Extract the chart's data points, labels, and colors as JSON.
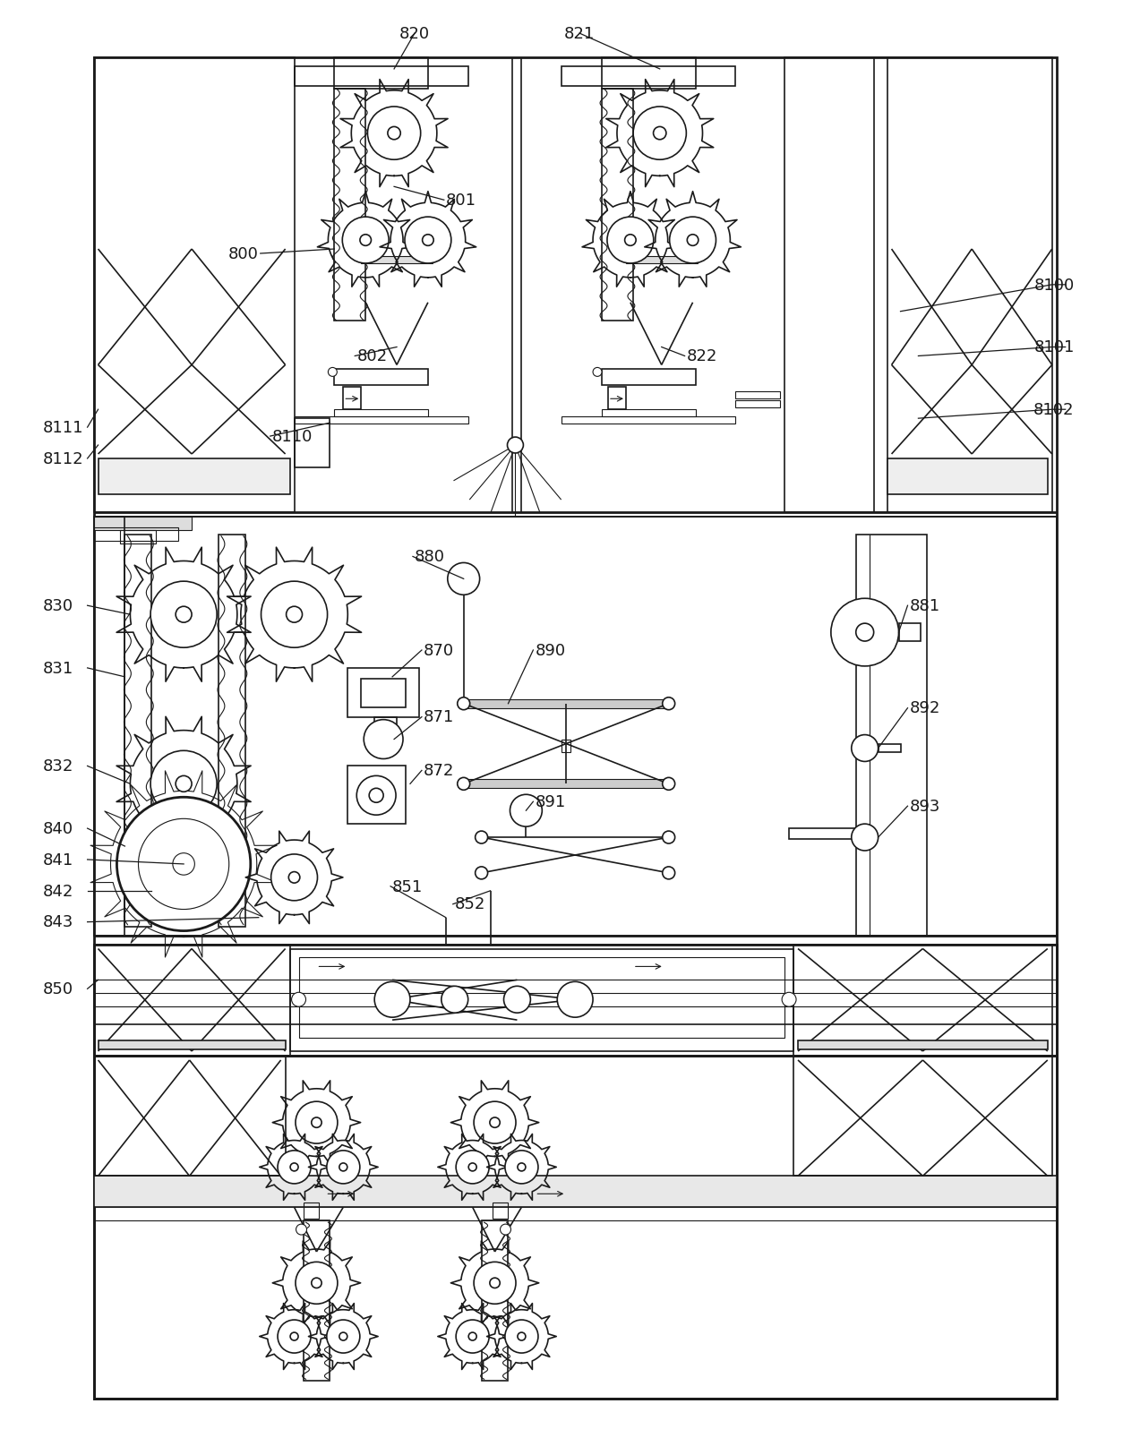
{
  "bg_color": "#ffffff",
  "line_color": "#1a1a1a",
  "lw_thin": 0.8,
  "lw_med": 1.2,
  "lw_thick": 2.0,
  "fig_width": 12.4,
  "fig_height": 16.13
}
